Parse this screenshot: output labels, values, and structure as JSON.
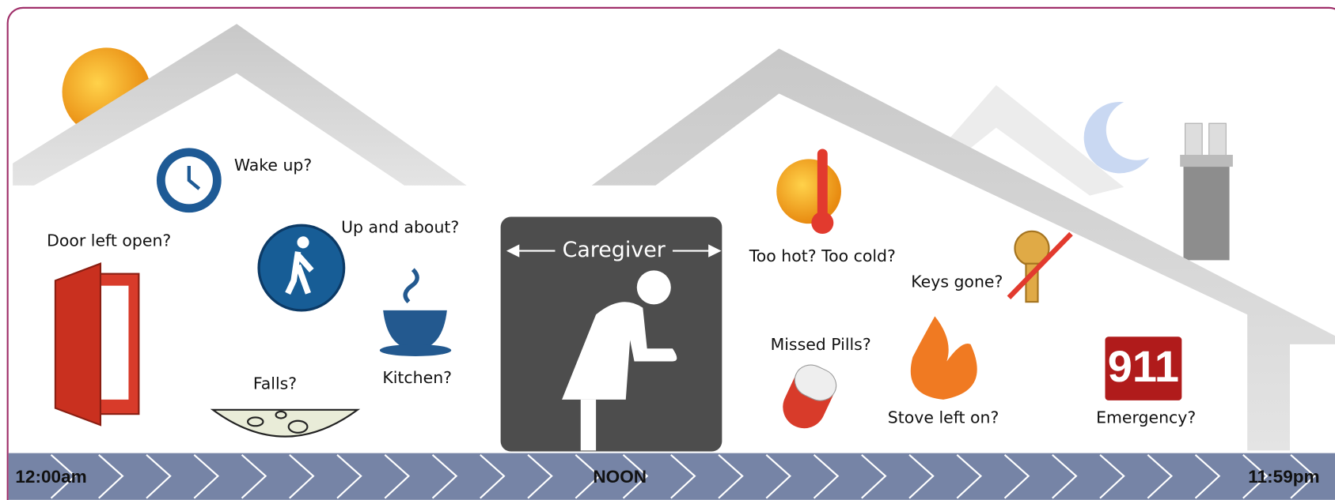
{
  "center_label": "Caregiver",
  "concerns": [
    {
      "label": "Wake up?"
    },
    {
      "label": "Door left open?"
    },
    {
      "label": "Up and about?"
    },
    {
      "label": "Falls?"
    },
    {
      "label": "Kitchen?"
    },
    {
      "label": "Too hot? Too cold?"
    },
    {
      "label": "Keys gone?"
    },
    {
      "label": "Missed Pills?"
    },
    {
      "label": "Stove left on?"
    },
    {
      "label": "Emergency?"
    }
  ],
  "emergency_sign": "911",
  "timeline": {
    "start": "12:00am",
    "middle": "NOON",
    "end": "11:59pm"
  }
}
